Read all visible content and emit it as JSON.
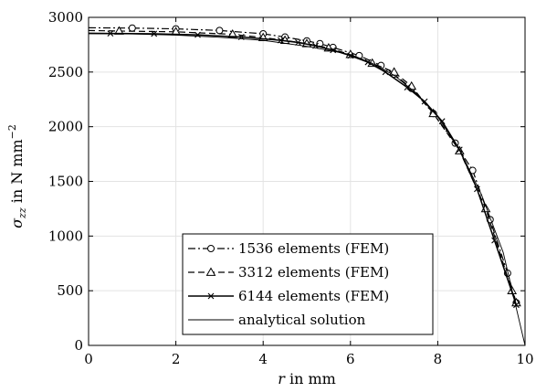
{
  "chart_data": {
    "type": "line",
    "xlabel_var": "r",
    "xlabel_unit": " in mm",
    "ylabel_var": "σ",
    "ylabel_sub": "zz",
    "ylabel_unit": " in N mm",
    "ylabel_exp": "−2",
    "xlim": [
      0,
      10
    ],
    "ylim": [
      0,
      3000
    ],
    "x_ticks": [
      0,
      2,
      4,
      6,
      8,
      10
    ],
    "y_ticks": [
      0,
      500,
      1000,
      1500,
      2000,
      2500,
      3000
    ],
    "grid": true,
    "legend_position": "bottom-left",
    "series": [
      {
        "name": "1536 elements (FEM)",
        "style": "dash-dot",
        "marker": "circle",
        "color": "#000000",
        "x": [
          0,
          1.0,
          2.0,
          3.0,
          4.0,
          4.5,
          5.0,
          5.3,
          5.6,
          6.2,
          6.7,
          7.0,
          7.4,
          7.9,
          8.4,
          8.8,
          9.2,
          9.6,
          9.8
        ],
        "y": [
          2905,
          2902,
          2895,
          2880,
          2850,
          2820,
          2785,
          2760,
          2725,
          2650,
          2560,
          2480,
          2350,
          2120,
          1850,
          1600,
          1150,
          660,
          390
        ]
      },
      {
        "name": "3312 elements (FEM)",
        "style": "dashed",
        "marker": "triangle",
        "color": "#000000",
        "x": [
          0,
          0.7,
          2.0,
          3.3,
          4.0,
          4.5,
          5.0,
          5.5,
          6.0,
          6.5,
          7.0,
          7.4,
          7.9,
          8.5,
          9.1,
          9.7,
          9.8
        ],
        "y": [
          2880,
          2875,
          2868,
          2845,
          2815,
          2790,
          2760,
          2720,
          2660,
          2580,
          2500,
          2370,
          2120,
          1780,
          1250,
          500,
          390
        ]
      },
      {
        "name": "6144 elements (FEM)",
        "style": "solid",
        "marker": "cross",
        "color": "#000000",
        "x": [
          0,
          0.5,
          1.5,
          2.5,
          3.5,
          4.4,
          4.8,
          5.2,
          5.6,
          6.0,
          6.4,
          6.8,
          7.3,
          7.7,
          8.1,
          8.5,
          8.9,
          9.3,
          9.8
        ],
        "y": [
          2855,
          2853,
          2850,
          2840,
          2820,
          2790,
          2770,
          2740,
          2700,
          2650,
          2590,
          2500,
          2360,
          2230,
          2050,
          1790,
          1430,
          960,
          370
        ]
      },
      {
        "name": "analytical solution",
        "style": "thin-solid",
        "marker": "none",
        "color": "#000000",
        "x": [
          0,
          1,
          2,
          3,
          4,
          5,
          6,
          6.5,
          7,
          7.5,
          8,
          8.5,
          9,
          9.5,
          10
        ],
        "y": [
          2850,
          2848,
          2838,
          2818,
          2790,
          2735,
          2660,
          2580,
          2470,
          2310,
          2090,
          1790,
          1380,
          850,
          0
        ]
      }
    ]
  }
}
